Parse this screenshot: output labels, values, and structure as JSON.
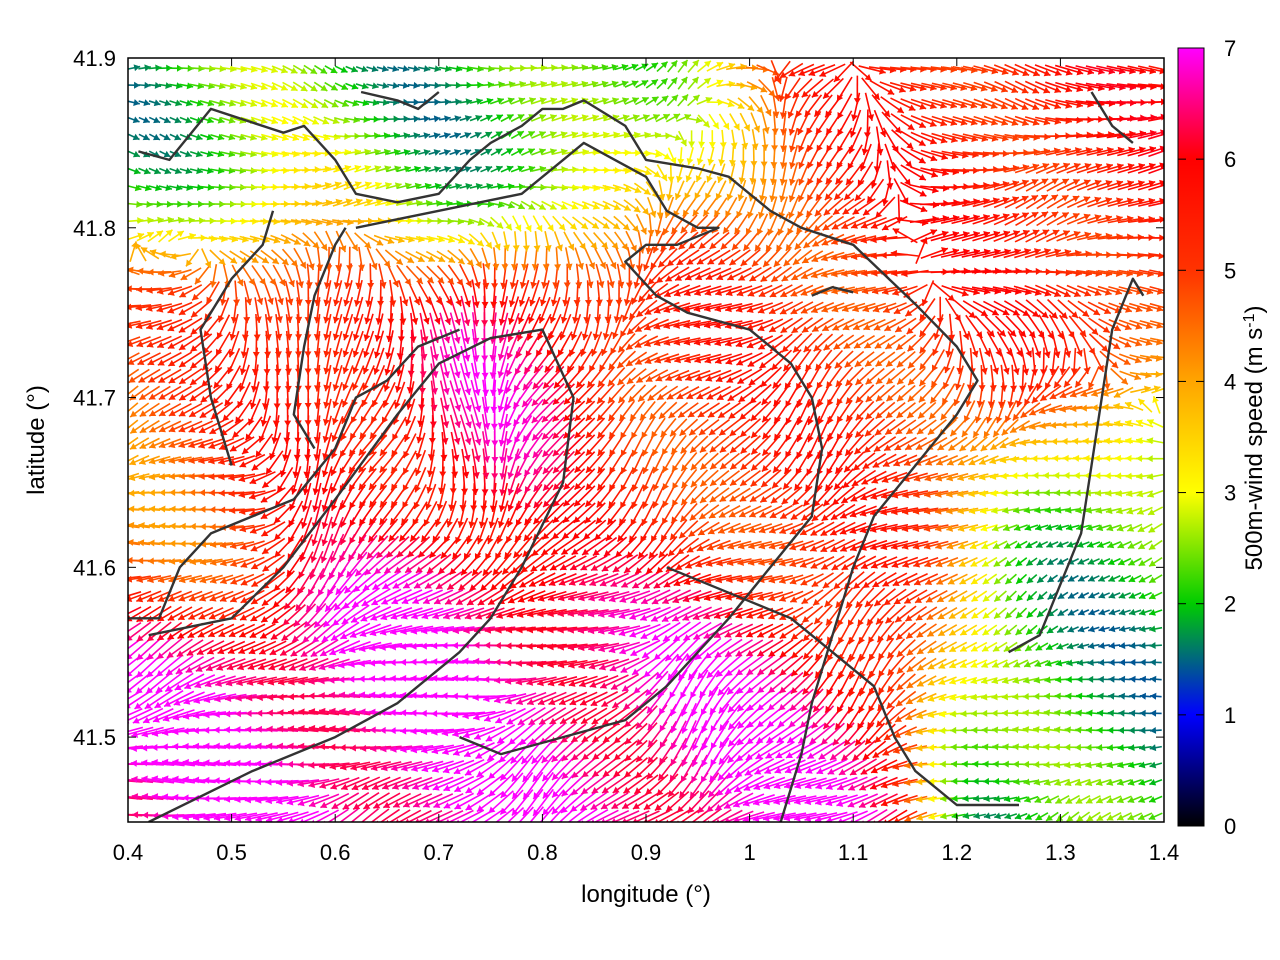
{
  "chart_data": {
    "type": "vector-field",
    "xlabel": "longitude (°)",
    "ylabel": "latitude (°)",
    "xlim": [
      0.4,
      1.4
    ],
    "ylim": [
      41.45,
      41.9
    ],
    "xticks": [
      "0.4",
      "0.5",
      "0.6",
      "0.7",
      "0.8",
      "0.9",
      "1",
      "1.1",
      "1.2",
      "1.3",
      "1.4"
    ],
    "yticks": [
      "41.5",
      "41.6",
      "41.7",
      "41.8",
      "41.9"
    ],
    "colorbar": {
      "label_main": "500m-wind speed (m s",
      "label_sup": "-1",
      "label_end": ")",
      "range": [
        0,
        7
      ],
      "ticks": [
        "0",
        "1",
        "2",
        "3",
        "4",
        "5",
        "6",
        "7"
      ],
      "colors": [
        "#000000",
        "#0000ff",
        "#00cc00",
        "#ffff00",
        "#ffa500",
        "#ff0000",
        "#ff00ff"
      ]
    },
    "field_grid": {
      "dx": 0.01,
      "dy": 0.01
    },
    "wind_regimes": [
      {
        "lon": [
          0.4,
          0.75
        ],
        "lat": [
          41.45,
          41.56
        ],
        "speed": 6.9,
        "dir": "west"
      },
      {
        "lon": [
          0.4,
          0.52
        ],
        "lat": [
          41.6,
          41.72
        ],
        "speed": 4.5,
        "dir": "west"
      },
      {
        "lon": [
          0.53,
          0.62
        ],
        "lat": [
          41.65,
          41.8
        ],
        "speed": 6.0,
        "dir": "south"
      },
      {
        "lon": [
          0.75,
          0.8
        ],
        "lat": [
          41.7,
          41.78
        ],
        "speed": 6.5,
        "dir": "south"
      },
      {
        "lon": [
          0.5,
          0.85
        ],
        "lat": [
          41.8,
          41.87
        ],
        "speed": 2.0,
        "dir": "east"
      },
      {
        "lon": [
          0.9,
          1.2
        ],
        "lat": [
          41.6,
          41.8
        ],
        "speed": 5.2,
        "dir": "southwest"
      },
      {
        "lon": [
          1.2,
          1.4
        ],
        "lat": [
          41.75,
          41.9
        ],
        "speed": 5.5,
        "dir": "east"
      },
      {
        "lon": [
          1.27,
          1.4
        ],
        "lat": [
          41.45,
          41.65
        ],
        "speed": 2.0,
        "dir": "west"
      },
      {
        "lon": [
          0.85,
          1.05
        ],
        "lat": [
          41.45,
          41.55
        ],
        "speed": 6.8,
        "dir": "southwest"
      }
    ],
    "coastline_paths": [
      [
        [
          0.41,
          41.845
        ],
        [
          0.44,
          41.84
        ],
        [
          0.48,
          41.87
        ],
        [
          0.5,
          41.866
        ],
        [
          0.55,
          41.856
        ],
        [
          0.57,
          41.86
        ],
        [
          0.6,
          41.84
        ],
        [
          0.62,
          41.82
        ],
        [
          0.66,
          41.815
        ],
        [
          0.7,
          41.82
        ],
        [
          0.73,
          41.84
        ],
        [
          0.75,
          41.85
        ],
        [
          0.78,
          41.86
        ],
        [
          0.8,
          41.87
        ],
        [
          0.82,
          41.87
        ],
        [
          0.84,
          41.875
        ],
        [
          0.88,
          41.86
        ],
        [
          0.9,
          41.84
        ],
        [
          0.95,
          41.835
        ],
        [
          0.98,
          41.83
        ],
        [
          1.02,
          41.81
        ],
        [
          1.05,
          41.8
        ],
        [
          1.1,
          41.79
        ],
        [
          1.16,
          41.755
        ],
        [
          1.2,
          41.73
        ],
        [
          1.22,
          41.71
        ],
        [
          1.2,
          41.69
        ],
        [
          1.16,
          41.66
        ],
        [
          1.12,
          41.63
        ],
        [
          1.1,
          41.6
        ],
        [
          1.08,
          41.56
        ],
        [
          1.06,
          41.52
        ],
        [
          1.05,
          41.49
        ],
        [
          1.03,
          41.45
        ]
      ],
      [
        [
          0.42,
          41.45
        ],
        [
          0.52,
          41.48
        ],
        [
          0.6,
          41.5
        ],
        [
          0.66,
          41.52
        ],
        [
          0.72,
          41.55
        ],
        [
          0.75,
          41.57
        ],
        [
          0.78,
          41.6
        ],
        [
          0.82,
          41.65
        ],
        [
          0.83,
          41.7
        ],
        [
          0.8,
          41.74
        ],
        [
          0.75,
          41.735
        ],
        [
          0.7,
          41.72
        ],
        [
          0.66,
          41.69
        ],
        [
          0.6,
          41.64
        ],
        [
          0.55,
          41.6
        ],
        [
          0.5,
          41.57
        ],
        [
          0.42,
          41.56
        ]
      ],
      [
        [
          0.4,
          41.57
        ],
        [
          0.43,
          41.57
        ],
        [
          0.45,
          41.6
        ],
        [
          0.48,
          41.62
        ],
        [
          0.52,
          41.63
        ],
        [
          0.56,
          41.64
        ],
        [
          0.6,
          41.67
        ],
        [
          0.62,
          41.7
        ],
        [
          0.65,
          41.71
        ],
        [
          0.68,
          41.73
        ],
        [
          0.72,
          41.74
        ]
      ],
      [
        [
          0.5,
          41.66
        ],
        [
          0.48,
          41.7
        ],
        [
          0.47,
          41.74
        ],
        [
          0.5,
          41.77
        ],
        [
          0.53,
          41.79
        ],
        [
          0.54,
          41.81
        ]
      ],
      [
        [
          0.58,
          41.67
        ],
        [
          0.56,
          41.69
        ],
        [
          0.57,
          41.73
        ],
        [
          0.58,
          41.76
        ],
        [
          0.6,
          41.79
        ],
        [
          0.61,
          41.8
        ]
      ],
      [
        [
          0.62,
          41.8
        ],
        [
          0.7,
          41.81
        ],
        [
          0.78,
          41.82
        ],
        [
          0.82,
          41.84
        ],
        [
          0.84,
          41.85
        ],
        [
          0.87,
          41.84
        ],
        [
          0.9,
          41.83
        ],
        [
          0.92,
          41.81
        ],
        [
          0.95,
          41.8
        ],
        [
          0.97,
          41.8
        ],
        [
          0.93,
          41.79
        ],
        [
          0.9,
          41.79
        ],
        [
          0.88,
          41.78
        ],
        [
          0.91,
          41.76
        ],
        [
          0.94,
          41.75
        ],
        [
          1.0,
          41.74
        ],
        [
          1.04,
          41.72
        ],
        [
          1.06,
          41.7
        ],
        [
          1.07,
          41.67
        ],
        [
          1.06,
          41.63
        ],
        [
          1.02,
          41.6
        ],
        [
          0.98,
          41.57
        ],
        [
          0.95,
          41.55
        ],
        [
          0.92,
          41.53
        ],
        [
          0.88,
          41.51
        ],
        [
          0.82,
          41.5
        ],
        [
          0.76,
          41.49
        ],
        [
          0.72,
          41.5
        ]
      ],
      [
        [
          0.92,
          41.6
        ],
        [
          0.96,
          41.59
        ],
        [
          1.0,
          41.58
        ],
        [
          1.04,
          41.57
        ],
        [
          1.08,
          41.55
        ],
        [
          1.12,
          41.53
        ],
        [
          1.14,
          41.5
        ],
        [
          1.16,
          41.48
        ],
        [
          1.2,
          41.46
        ],
        [
          1.26,
          41.46
        ]
      ],
      [
        [
          1.25,
          41.55
        ],
        [
          1.28,
          41.56
        ],
        [
          1.3,
          41.59
        ],
        [
          1.32,
          41.62
        ],
        [
          1.33,
          41.66
        ],
        [
          1.34,
          41.7
        ],
        [
          1.35,
          41.74
        ],
        [
          1.37,
          41.77
        ],
        [
          1.38,
          41.76
        ]
      ],
      [
        [
          1.33,
          41.88
        ],
        [
          1.34,
          41.87
        ],
        [
          1.35,
          41.86
        ],
        [
          1.37,
          41.85
        ]
      ],
      [
        [
          0.625,
          41.88
        ],
        [
          0.66,
          41.875
        ],
        [
          0.68,
          41.87
        ],
        [
          0.7,
          41.88
        ]
      ],
      [
        [
          1.06,
          41.76
        ],
        [
          1.08,
          41.765
        ],
        [
          1.1,
          41.762
        ]
      ]
    ],
    "labels_printed": {}
  }
}
